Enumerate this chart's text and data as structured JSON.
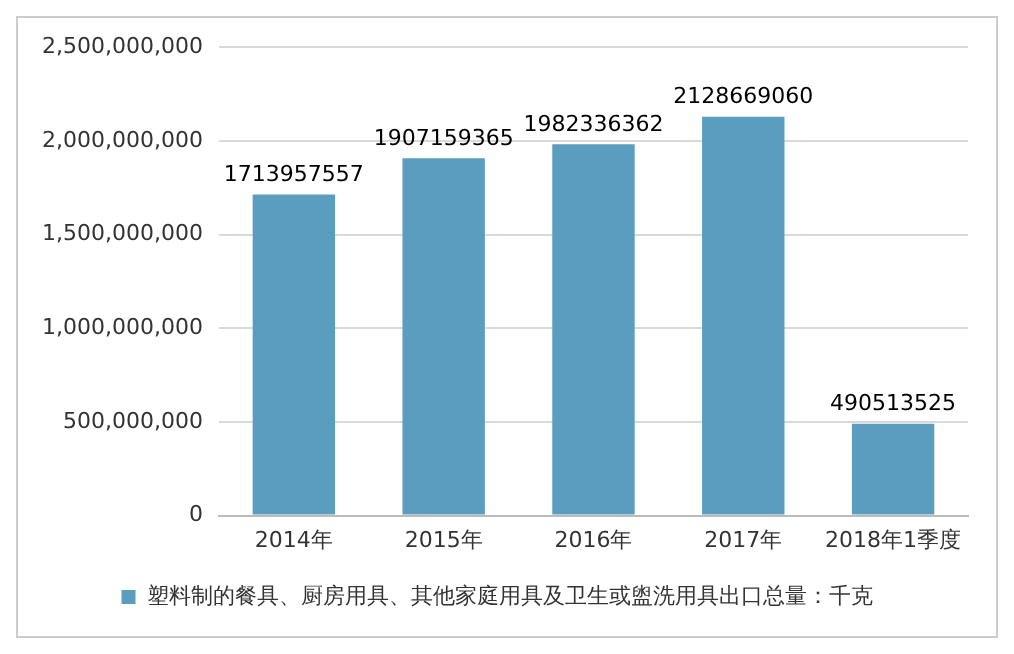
{
  "chart_data": {
    "type": "bar",
    "categories": [
      "2014年",
      "2015年",
      "2016年",
      "2017年",
      "2018年1季度"
    ],
    "series": [
      {
        "name": "塑料制的餐具、厨房用具、其他家庭用具及卫生或盥洗用具出口总量：千克",
        "color": "#5a9dbf",
        "values": [
          1713957557,
          1907159365,
          1982336362,
          2128669060,
          490513525
        ]
      }
    ],
    "ylim": [
      0,
      2500000000
    ],
    "yticks": [
      {
        "value": 0,
        "label": "0"
      },
      {
        "value": 500000000,
        "label": "500,000,000"
      },
      {
        "value": 1000000000,
        "label": "1,000,000,000"
      },
      {
        "value": 1500000000,
        "label": "1,500,000,000"
      },
      {
        "value": 2000000000,
        "label": "2,000,000,000"
      },
      {
        "value": 2500000000,
        "label": "2,500,000,000"
      }
    ],
    "grid": "y",
    "legend": "bottom",
    "data_labels": true
  }
}
